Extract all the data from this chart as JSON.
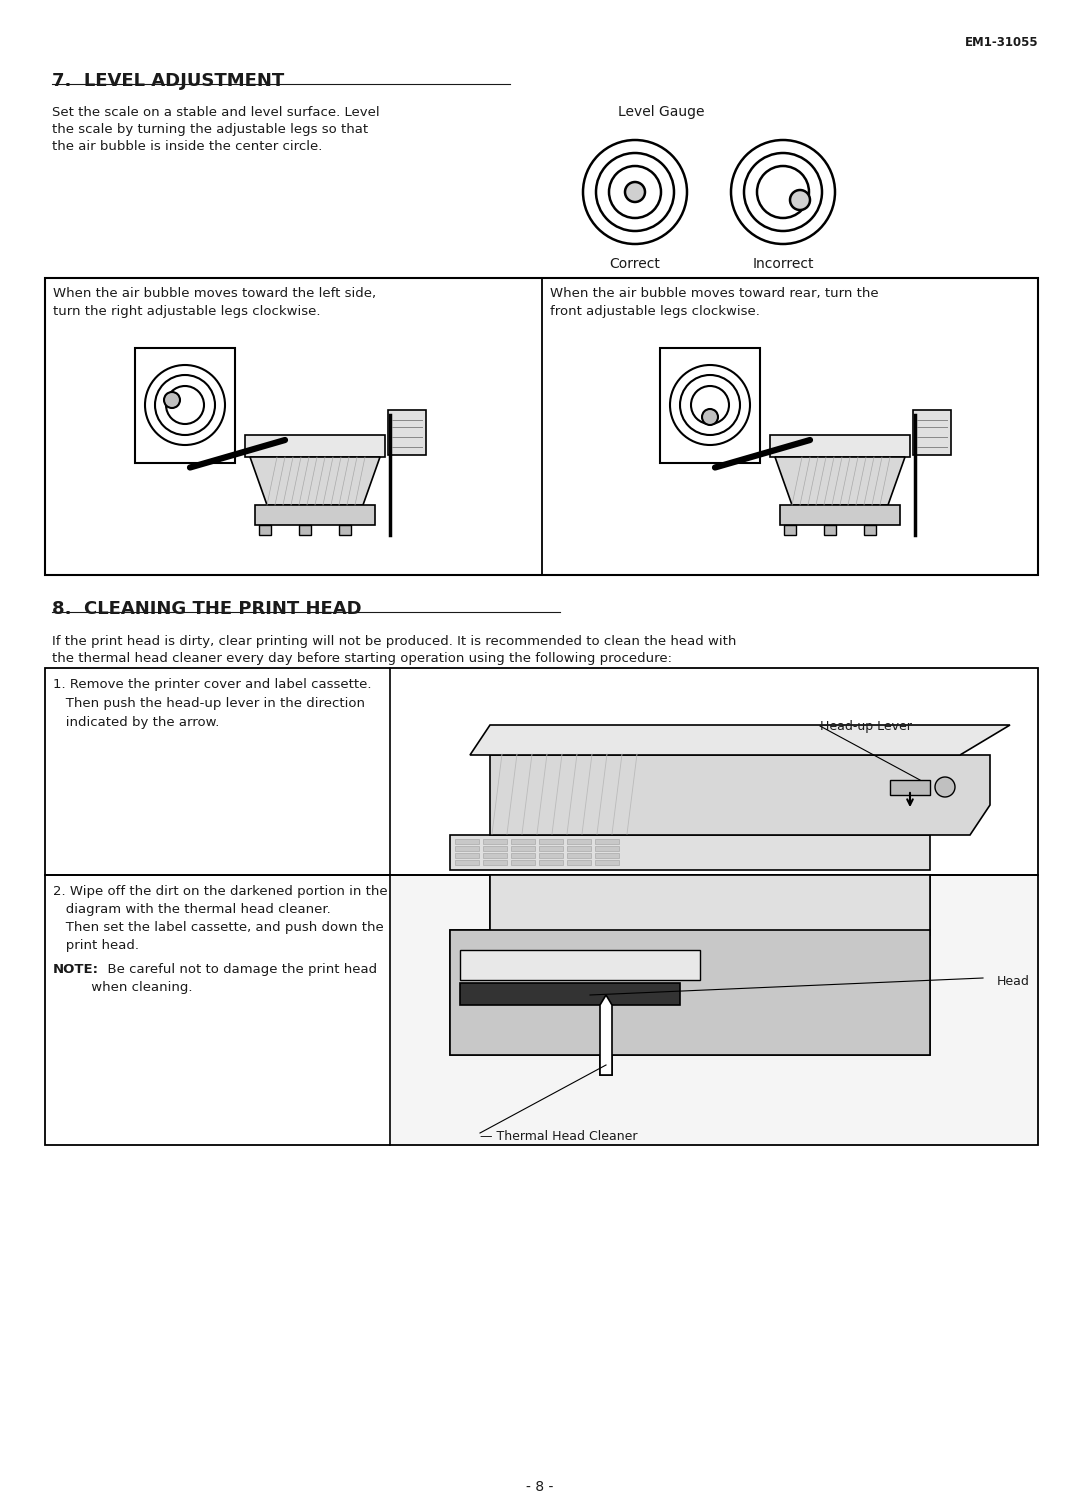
{
  "page_id": "EM1-31055",
  "bg_color": "#ffffff",
  "text_color": "#1a1a1a",
  "section7_title": "7.  LEVEL ADJUSTMENT",
  "section7_body1": "Set the scale on a stable and level surface. Level",
  "section7_body2": "the scale by turning the adjustable legs so that",
  "section7_body3": "the air bubble is inside the center circle.",
  "level_gauge_label": "Level Gauge",
  "correct_label": "Correct",
  "incorrect_label": "Incorrect",
  "box1_text1": "When the air bubble moves toward the left side,",
  "box1_text2": "turn the right adjustable legs clockwise.",
  "box2_text1": "When the air bubble moves toward rear, turn the",
  "box2_text2": "front adjustable legs clockwise.",
  "section8_title": "8.  CLEANING THE PRINT HEAD",
  "section8_body1": "If the print head is dirty, clear printing will not be produced. It is recommended to clean the head with",
  "section8_body2": "the thermal head cleaner every day before starting operation using the following procedure:",
  "step1_line1": "1. Remove the printer cover and label cassette.",
  "step1_line2": "   Then push the head-up lever in the direction",
  "step1_line3": "   indicated by the arrow.",
  "head_up_lever_label": "Head-up Lever",
  "step2_line1": "2. Wipe off the dirt on the darkened portion in the",
  "step2_line2": "   diagram with the thermal head cleaner.",
  "step2_line3": "   Then set the label cassette, and push down the",
  "step2_line4": "   print head.",
  "step2_note_bold": "NOTE:",
  "step2_note_rest": "  Be careful not to damage the print head",
  "step2_note_line2": "         when cleaning.",
  "head_label": "Head",
  "thermal_label": "— Thermal Head Cleaner",
  "page_number": "- 8 -"
}
